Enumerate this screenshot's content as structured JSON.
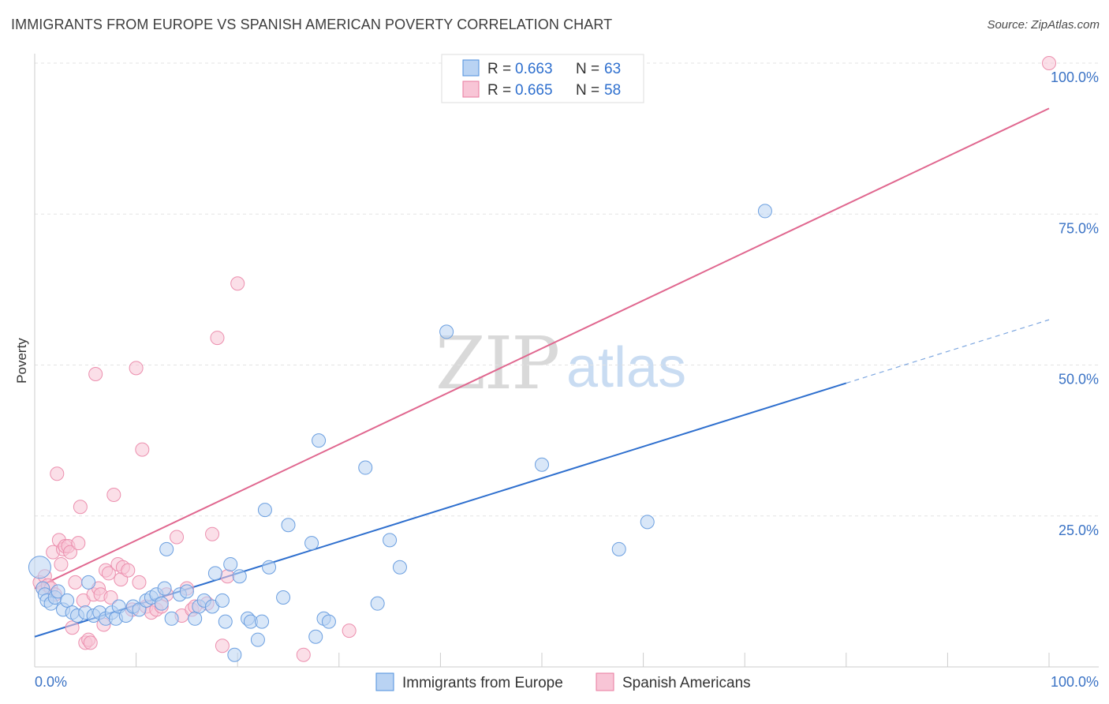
{
  "header": {
    "title": "IMMIGRANTS FROM EUROPE VS SPANISH AMERICAN POVERTY CORRELATION CHART",
    "source": "Source: ZipAtlas.com"
  },
  "watermark": {
    "zip": "ZIP",
    "atlas": "atlas"
  },
  "colors": {
    "blue": "#4d8fdc",
    "blue_fill": "#b9d3f3",
    "blue_line": "#2e6fce",
    "pink": "#e9799f",
    "pink_fill": "#f8c5d6",
    "pink_line": "#e0678f",
    "tick": "#3b73c5"
  },
  "legend": {
    "rows": [
      {
        "r_label": "R =",
        "r_value": "0.663",
        "n_label": "N =",
        "n_value": "63"
      },
      {
        "r_label": "R =",
        "r_value": "0.665",
        "n_label": "N =",
        "n_value": "58"
      }
    ]
  },
  "chart_data": {
    "type": "scatter",
    "title": "IMMIGRANTS FROM EUROPE VS SPANISH AMERICAN POVERTY CORRELATION CHART",
    "xlabel": "",
    "ylabel": "Poverty",
    "xlim": [
      0,
      100
    ],
    "ylim": [
      0,
      100
    ],
    "x_tick_labels": [
      "0.0%",
      "100.0%"
    ],
    "y_ticks": [
      25,
      50,
      75,
      100
    ],
    "y_tick_labels": [
      "25.0%",
      "50.0%",
      "75.0%",
      "100.0%"
    ],
    "grid": true,
    "legend_position": "top-center",
    "series": [
      {
        "name": "Immigrants from Europe",
        "color": "#4d8fdc",
        "r": "0.663",
        "n": "63",
        "trend": {
          "x0": 0,
          "y0": 5,
          "x1": 80,
          "y1": 47,
          "dash_to_x": 100,
          "dash_to_y": 57.5
        },
        "points": [
          [
            0.5,
            16.5
          ],
          [
            0.8,
            13
          ],
          [
            1,
            12
          ],
          [
            1.2,
            11
          ],
          [
            1.6,
            10.5
          ],
          [
            2,
            11.5
          ],
          [
            2.3,
            12.5
          ],
          [
            2.8,
            9.5
          ],
          [
            3.2,
            11
          ],
          [
            3.7,
            9
          ],
          [
            4.2,
            8.5
          ],
          [
            5,
            9
          ],
          [
            5.3,
            14
          ],
          [
            5.8,
            8.5
          ],
          [
            6.4,
            9
          ],
          [
            7,
            8
          ],
          [
            7.6,
            9
          ],
          [
            8,
            8
          ],
          [
            8.3,
            10
          ],
          [
            9,
            8.5
          ],
          [
            9.7,
            10
          ],
          [
            10.3,
            9.5
          ],
          [
            11,
            11
          ],
          [
            11.5,
            11.5
          ],
          [
            12,
            12
          ],
          [
            12.5,
            10.5
          ],
          [
            12.8,
            13
          ],
          [
            13,
            19.5
          ],
          [
            13.5,
            8
          ],
          [
            14.3,
            12
          ],
          [
            15,
            12.5
          ],
          [
            15.8,
            8
          ],
          [
            16.2,
            10
          ],
          [
            16.7,
            11
          ],
          [
            17.5,
            10
          ],
          [
            17.8,
            15.5
          ],
          [
            18.5,
            11
          ],
          [
            18.8,
            7.5
          ],
          [
            19.3,
            17
          ],
          [
            19.7,
            2
          ],
          [
            20.2,
            15
          ],
          [
            21,
            8
          ],
          [
            21.3,
            7.5
          ],
          [
            22,
            4.5
          ],
          [
            22.4,
            7.5
          ],
          [
            22.7,
            26
          ],
          [
            23.1,
            16.5
          ],
          [
            24.5,
            11.5
          ],
          [
            25,
            23.5
          ],
          [
            27.3,
            20.5
          ],
          [
            27.7,
            5
          ],
          [
            28,
            37.5
          ],
          [
            28.5,
            8
          ],
          [
            29,
            7.5
          ],
          [
            32.6,
            33
          ],
          [
            33.8,
            10.5
          ],
          [
            35,
            21
          ],
          [
            36,
            16.5
          ],
          [
            40.6,
            55.5
          ],
          [
            50,
            33.5
          ],
          [
            57.6,
            19.5
          ],
          [
            60.4,
            24
          ],
          [
            72,
            75.5
          ]
        ]
      },
      {
        "name": "Spanish Americans",
        "color": "#e9799f",
        "r": "0.665",
        "n": "58",
        "trend": {
          "x0": 0,
          "y0": 13,
          "x1": 100,
          "y1": 92.5
        },
        "points": [
          [
            0.5,
            14
          ],
          [
            0.8,
            13
          ],
          [
            1,
            15
          ],
          [
            1.3,
            13.5
          ],
          [
            1.6,
            13
          ],
          [
            1.8,
            19
          ],
          [
            2,
            12
          ],
          [
            2.2,
            32
          ],
          [
            2.4,
            21
          ],
          [
            2.6,
            17
          ],
          [
            2.8,
            19.5
          ],
          [
            3,
            20
          ],
          [
            3.3,
            20
          ],
          [
            3.5,
            19
          ],
          [
            3.7,
            6.5
          ],
          [
            4,
            14
          ],
          [
            4.3,
            20.5
          ],
          [
            4.5,
            26.5
          ],
          [
            4.8,
            11
          ],
          [
            5,
            4
          ],
          [
            5.3,
            4.5
          ],
          [
            5.5,
            4
          ],
          [
            5.8,
            12
          ],
          [
            6,
            48.5
          ],
          [
            6.3,
            13
          ],
          [
            6.5,
            12
          ],
          [
            6.8,
            7
          ],
          [
            7,
            16
          ],
          [
            7.3,
            15.5
          ],
          [
            7.5,
            11.5
          ],
          [
            7.8,
            28.5
          ],
          [
            8.2,
            17
          ],
          [
            8.5,
            14.5
          ],
          [
            8.7,
            16.5
          ],
          [
            9.2,
            16
          ],
          [
            9.6,
            9.5
          ],
          [
            10,
            49.5
          ],
          [
            10.3,
            14
          ],
          [
            10.6,
            36
          ],
          [
            11,
            10
          ],
          [
            11.5,
            9
          ],
          [
            12,
            9.5
          ],
          [
            12.5,
            10
          ],
          [
            13,
            12
          ],
          [
            14,
            21.5
          ],
          [
            14.5,
            8.5
          ],
          [
            15,
            13
          ],
          [
            15.5,
            9.5
          ],
          [
            15.8,
            10
          ],
          [
            17,
            10.5
          ],
          [
            17.5,
            22
          ],
          [
            18,
            54.5
          ],
          [
            18.5,
            3.5
          ],
          [
            19,
            15
          ],
          [
            20,
            63.5
          ],
          [
            26.5,
            2
          ],
          [
            31,
            6
          ],
          [
            100,
            100
          ]
        ]
      }
    ]
  }
}
